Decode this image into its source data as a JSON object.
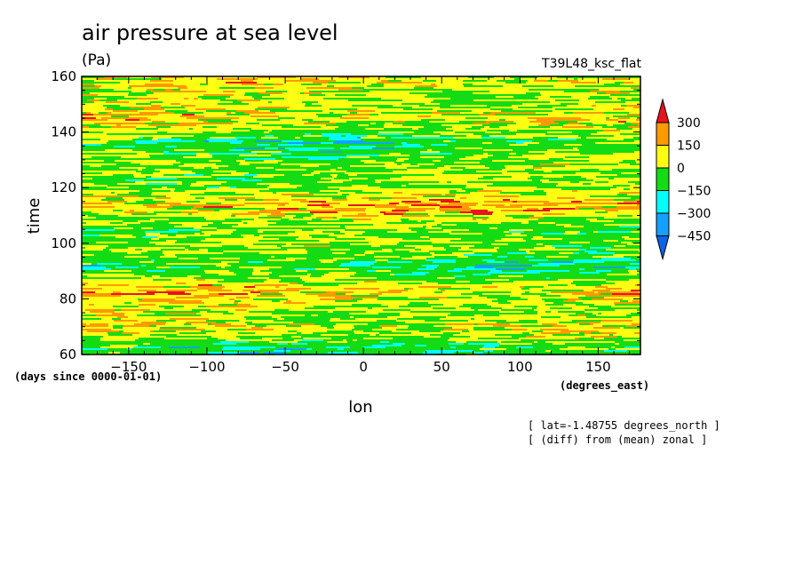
{
  "chart_data": {
    "type": "heatmap",
    "title": "air pressure at sea level",
    "units": "(Pa)",
    "experiment": "T39L48_ksc_flat",
    "xlabel": "lon",
    "xunits": "(degrees_east)",
    "ylabel": "time",
    "yunits": "(days since 0000-01-01)",
    "x_ticks": [
      -150,
      -100,
      -50,
      0,
      50,
      100,
      150
    ],
    "y_ticks": [
      60,
      80,
      100,
      120,
      140,
      160
    ],
    "xlim": [
      -180,
      177
    ],
    "ylim": [
      60,
      160
    ],
    "colorbar": {
      "levels": [
        300,
        150,
        0,
        -150,
        -300,
        -450
      ],
      "colors": [
        "#e8141e",
        "#ff9a00",
        "#ffff14",
        "#14dc14",
        "#00ffff",
        "#14a0ff",
        "#0a64e6"
      ],
      "extend": "both"
    },
    "notes": [
      "[ lat=-1.48755 degrees_north ]",
      "[ (diff) from (mean) zonal ]"
    ]
  }
}
